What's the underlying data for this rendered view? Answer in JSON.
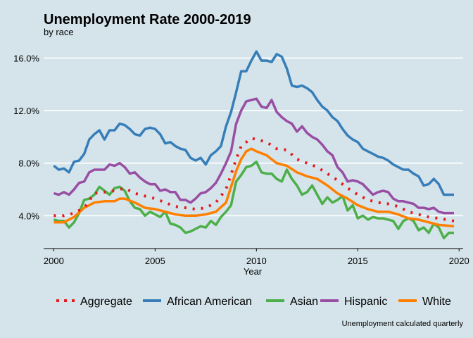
{
  "chart_data": {
    "type": "line",
    "title": "Unemployment Rate 2000-2019",
    "subtitle": "by race",
    "xlabel": "Year",
    "ylabel": "",
    "caption": "Unemployment calculated quarterly",
    "xlim": [
      1999.5,
      2020.2
    ],
    "ylim": [
      1.5,
      17.2
    ],
    "x_ticks": [
      2000,
      2005,
      2010,
      2015,
      2020
    ],
    "y_ticks": [
      4,
      8,
      12,
      16
    ],
    "y_tick_labels": [
      "4.0%",
      "8.0%",
      "12.0%",
      "16.0%"
    ],
    "grid": "horizontal",
    "legend_position": "bottom",
    "series": [
      {
        "name": "Aggregate",
        "color": "#e41a1c",
        "dash": "dotted",
        "x": [
          2000,
          2000.5,
          2001,
          2001.5,
          2002,
          2002.5,
          2003,
          2003.5,
          2004,
          2004.5,
          2005,
          2005.5,
          2006,
          2006.5,
          2007,
          2007.5,
          2008,
          2008.5,
          2009,
          2009.25,
          2009.5,
          2009.75,
          2010,
          2010.5,
          2011,
          2011.5,
          2012,
          2012.5,
          2013,
          2013.5,
          2014,
          2014.5,
          2015,
          2015.5,
          2016,
          2016.5,
          2017,
          2017.5,
          2018,
          2018.5,
          2019,
          2019.75
        ],
        "y": [
          4.0,
          4.0,
          4.2,
          4.6,
          5.7,
          5.8,
          5.9,
          6.1,
          5.7,
          5.5,
          5.3,
          5.0,
          4.7,
          4.6,
          4.5,
          4.6,
          5.0,
          6.0,
          8.3,
          9.3,
          9.6,
          9.9,
          9.8,
          9.6,
          9.1,
          9.0,
          8.3,
          8.0,
          7.7,
          7.2,
          6.7,
          6.1,
          5.6,
          5.2,
          5.0,
          4.9,
          4.7,
          4.3,
          4.1,
          3.9,
          3.8,
          3.6
        ]
      },
      {
        "name": "African American",
        "color": "#377eb8",
        "dash": "solid",
        "x": [
          2000,
          2000.25,
          2000.5,
          2000.75,
          2001,
          2001.25,
          2001.5,
          2001.75,
          2002,
          2002.25,
          2002.5,
          2002.75,
          2003,
          2003.25,
          2003.5,
          2003.75,
          2004,
          2004.25,
          2004.5,
          2004.75,
          2005,
          2005.25,
          2005.5,
          2005.75,
          2006,
          2006.25,
          2006.5,
          2006.75,
          2007,
          2007.25,
          2007.5,
          2007.75,
          2008,
          2008.25,
          2008.5,
          2008.75,
          2009,
          2009.25,
          2009.5,
          2009.75,
          2010,
          2010.25,
          2010.5,
          2010.75,
          2011,
          2011.25,
          2011.5,
          2011.75,
          2012,
          2012.25,
          2012.5,
          2012.75,
          2013,
          2013.25,
          2013.5,
          2013.75,
          2014,
          2014.25,
          2014.5,
          2014.75,
          2015,
          2015.25,
          2015.5,
          2015.75,
          2016,
          2016.25,
          2016.5,
          2016.75,
          2017,
          2017.25,
          2017.5,
          2017.75,
          2018,
          2018.25,
          2018.5,
          2018.75,
          2019,
          2019.25,
          2019.5,
          2019.75
        ],
        "y": [
          7.8,
          7.5,
          7.6,
          7.3,
          8.1,
          8.2,
          8.7,
          9.8,
          10.2,
          10.5,
          9.8,
          10.5,
          10.5,
          11.0,
          10.9,
          10.6,
          10.2,
          10.1,
          10.6,
          10.7,
          10.6,
          10.2,
          9.5,
          9.6,
          9.3,
          9.1,
          9.0,
          8.4,
          8.2,
          8.4,
          7.9,
          8.6,
          8.9,
          9.3,
          10.8,
          11.9,
          13.4,
          15.0,
          15.0,
          15.8,
          16.5,
          15.8,
          15.8,
          15.7,
          16.3,
          16.1,
          15.2,
          13.9,
          13.8,
          13.9,
          13.7,
          13.4,
          12.8,
          12.3,
          12.0,
          11.5,
          11.2,
          10.6,
          10.1,
          9.8,
          9.6,
          9.1,
          8.9,
          8.7,
          8.5,
          8.4,
          8.2,
          7.9,
          7.7,
          7.5,
          7.5,
          7.2,
          7.0,
          6.3,
          6.4,
          6.8,
          6.4,
          5.6,
          5.6,
          5.6
        ]
      },
      {
        "name": "Asian",
        "color": "#4daf4a",
        "dash": "solid",
        "x": [
          2000,
          2000.25,
          2000.5,
          2000.75,
          2001,
          2001.25,
          2001.5,
          2001.75,
          2002,
          2002.25,
          2002.5,
          2002.75,
          2003,
          2003.25,
          2003.5,
          2003.75,
          2004,
          2004.25,
          2004.5,
          2004.75,
          2005,
          2005.25,
          2005.5,
          2005.75,
          2006,
          2006.25,
          2006.5,
          2006.75,
          2007,
          2007.25,
          2007.5,
          2007.75,
          2008,
          2008.25,
          2008.5,
          2008.75,
          2009,
          2009.25,
          2009.5,
          2009.75,
          2010,
          2010.25,
          2010.5,
          2010.75,
          2011,
          2011.25,
          2011.5,
          2011.75,
          2012,
          2012.25,
          2012.5,
          2012.75,
          2013,
          2013.25,
          2013.5,
          2013.75,
          2014,
          2014.25,
          2014.5,
          2014.75,
          2015,
          2015.25,
          2015.5,
          2015.75,
          2016,
          2016.25,
          2016.5,
          2016.75,
          2017,
          2017.25,
          2017.5,
          2017.75,
          2018,
          2018.25,
          2018.5,
          2018.75,
          2019,
          2019.25,
          2019.5,
          2019.75
        ],
        "y": [
          3.7,
          3.6,
          3.6,
          3.1,
          3.5,
          4.2,
          5.2,
          5.3,
          5.6,
          6.2,
          5.9,
          5.6,
          6.1,
          6.2,
          5.9,
          5.1,
          4.6,
          4.5,
          4.0,
          4.3,
          4.1,
          3.9,
          4.3,
          3.4,
          3.3,
          3.1,
          2.7,
          2.8,
          3.0,
          3.2,
          3.1,
          3.6,
          3.3,
          3.9,
          4.3,
          4.8,
          6.6,
          7.1,
          7.7,
          7.8,
          8.1,
          7.3,
          7.2,
          7.2,
          6.8,
          6.6,
          7.5,
          6.8,
          6.3,
          5.6,
          5.8,
          6.3,
          5.6,
          4.9,
          5.4,
          5.0,
          5.2,
          5.5,
          4.4,
          4.8,
          3.8,
          4.0,
          3.7,
          3.9,
          3.8,
          3.8,
          3.7,
          3.6,
          3.0,
          3.6,
          3.8,
          3.6,
          2.9,
          3.1,
          2.7,
          3.4,
          3.1,
          2.3,
          2.7,
          2.7
        ]
      },
      {
        "name": "Hispanic",
        "color": "#984ea3",
        "dash": "solid",
        "x": [
          2000,
          2000.25,
          2000.5,
          2000.75,
          2001,
          2001.25,
          2001.5,
          2001.75,
          2002,
          2002.25,
          2002.5,
          2002.75,
          2003,
          2003.25,
          2003.5,
          2003.75,
          2004,
          2004.25,
          2004.5,
          2004.75,
          2005,
          2005.25,
          2005.5,
          2005.75,
          2006,
          2006.25,
          2006.5,
          2006.75,
          2007,
          2007.25,
          2007.5,
          2007.75,
          2008,
          2008.25,
          2008.5,
          2008.75,
          2009,
          2009.25,
          2009.5,
          2009.75,
          2010,
          2010.25,
          2010.5,
          2010.75,
          2011,
          2011.25,
          2011.5,
          2011.75,
          2012,
          2012.25,
          2012.5,
          2012.75,
          2013,
          2013.25,
          2013.5,
          2013.75,
          2014,
          2014.25,
          2014.5,
          2014.75,
          2015,
          2015.25,
          2015.5,
          2015.75,
          2016,
          2016.25,
          2016.5,
          2016.75,
          2017,
          2017.25,
          2017.5,
          2017.75,
          2018,
          2018.25,
          2018.5,
          2018.75,
          2019,
          2019.25,
          2019.5,
          2019.75
        ],
        "y": [
          5.7,
          5.6,
          5.8,
          5.6,
          6.0,
          6.5,
          6.6,
          7.3,
          7.5,
          7.5,
          7.5,
          7.9,
          7.8,
          8.0,
          7.7,
          7.2,
          7.3,
          6.9,
          6.6,
          6.4,
          6.4,
          5.9,
          6.0,
          5.8,
          5.8,
          5.2,
          5.2,
          5.0,
          5.3,
          5.7,
          5.8,
          6.1,
          6.5,
          7.2,
          8.0,
          8.9,
          11.0,
          12.0,
          12.7,
          12.8,
          12.9,
          12.3,
          12.2,
          12.8,
          11.9,
          11.5,
          11.2,
          11.0,
          10.4,
          10.8,
          10.3,
          10.0,
          9.8,
          9.4,
          8.9,
          8.6,
          7.7,
          7.3,
          6.6,
          6.7,
          6.6,
          6.4,
          6.0,
          5.6,
          5.8,
          5.9,
          5.8,
          5.3,
          5.1,
          5.1,
          5.0,
          4.9,
          4.6,
          4.6,
          4.5,
          4.6,
          4.3,
          4.2,
          4.2,
          4.2
        ]
      },
      {
        "name": "White",
        "color": "#ff7f00",
        "dash": "solid",
        "x": [
          2000,
          2000.5,
          2001,
          2001.5,
          2002,
          2002.5,
          2003,
          2003.25,
          2003.5,
          2004,
          2004.5,
          2005,
          2005.5,
          2006,
          2006.5,
          2007,
          2007.5,
          2008,
          2008.5,
          2009,
          2009.25,
          2009.5,
          2009.75,
          2010,
          2010.5,
          2011,
          2011.5,
          2012,
          2012.5,
          2013,
          2013.5,
          2014,
          2014.5,
          2015,
          2015.5,
          2016,
          2016.5,
          2017,
          2017.5,
          2018,
          2018.5,
          2019,
          2019.75
        ],
        "y": [
          3.5,
          3.5,
          3.9,
          4.6,
          5.0,
          5.1,
          5.1,
          5.3,
          5.3,
          5.0,
          4.6,
          4.5,
          4.3,
          4.1,
          4.0,
          4.0,
          4.1,
          4.3,
          5.0,
          7.4,
          8.3,
          8.9,
          9.1,
          8.9,
          8.6,
          8.0,
          7.8,
          7.3,
          7.0,
          6.8,
          6.3,
          5.7,
          5.3,
          4.8,
          4.5,
          4.3,
          4.3,
          4.1,
          3.8,
          3.7,
          3.5,
          3.3,
          3.2
        ]
      }
    ]
  }
}
